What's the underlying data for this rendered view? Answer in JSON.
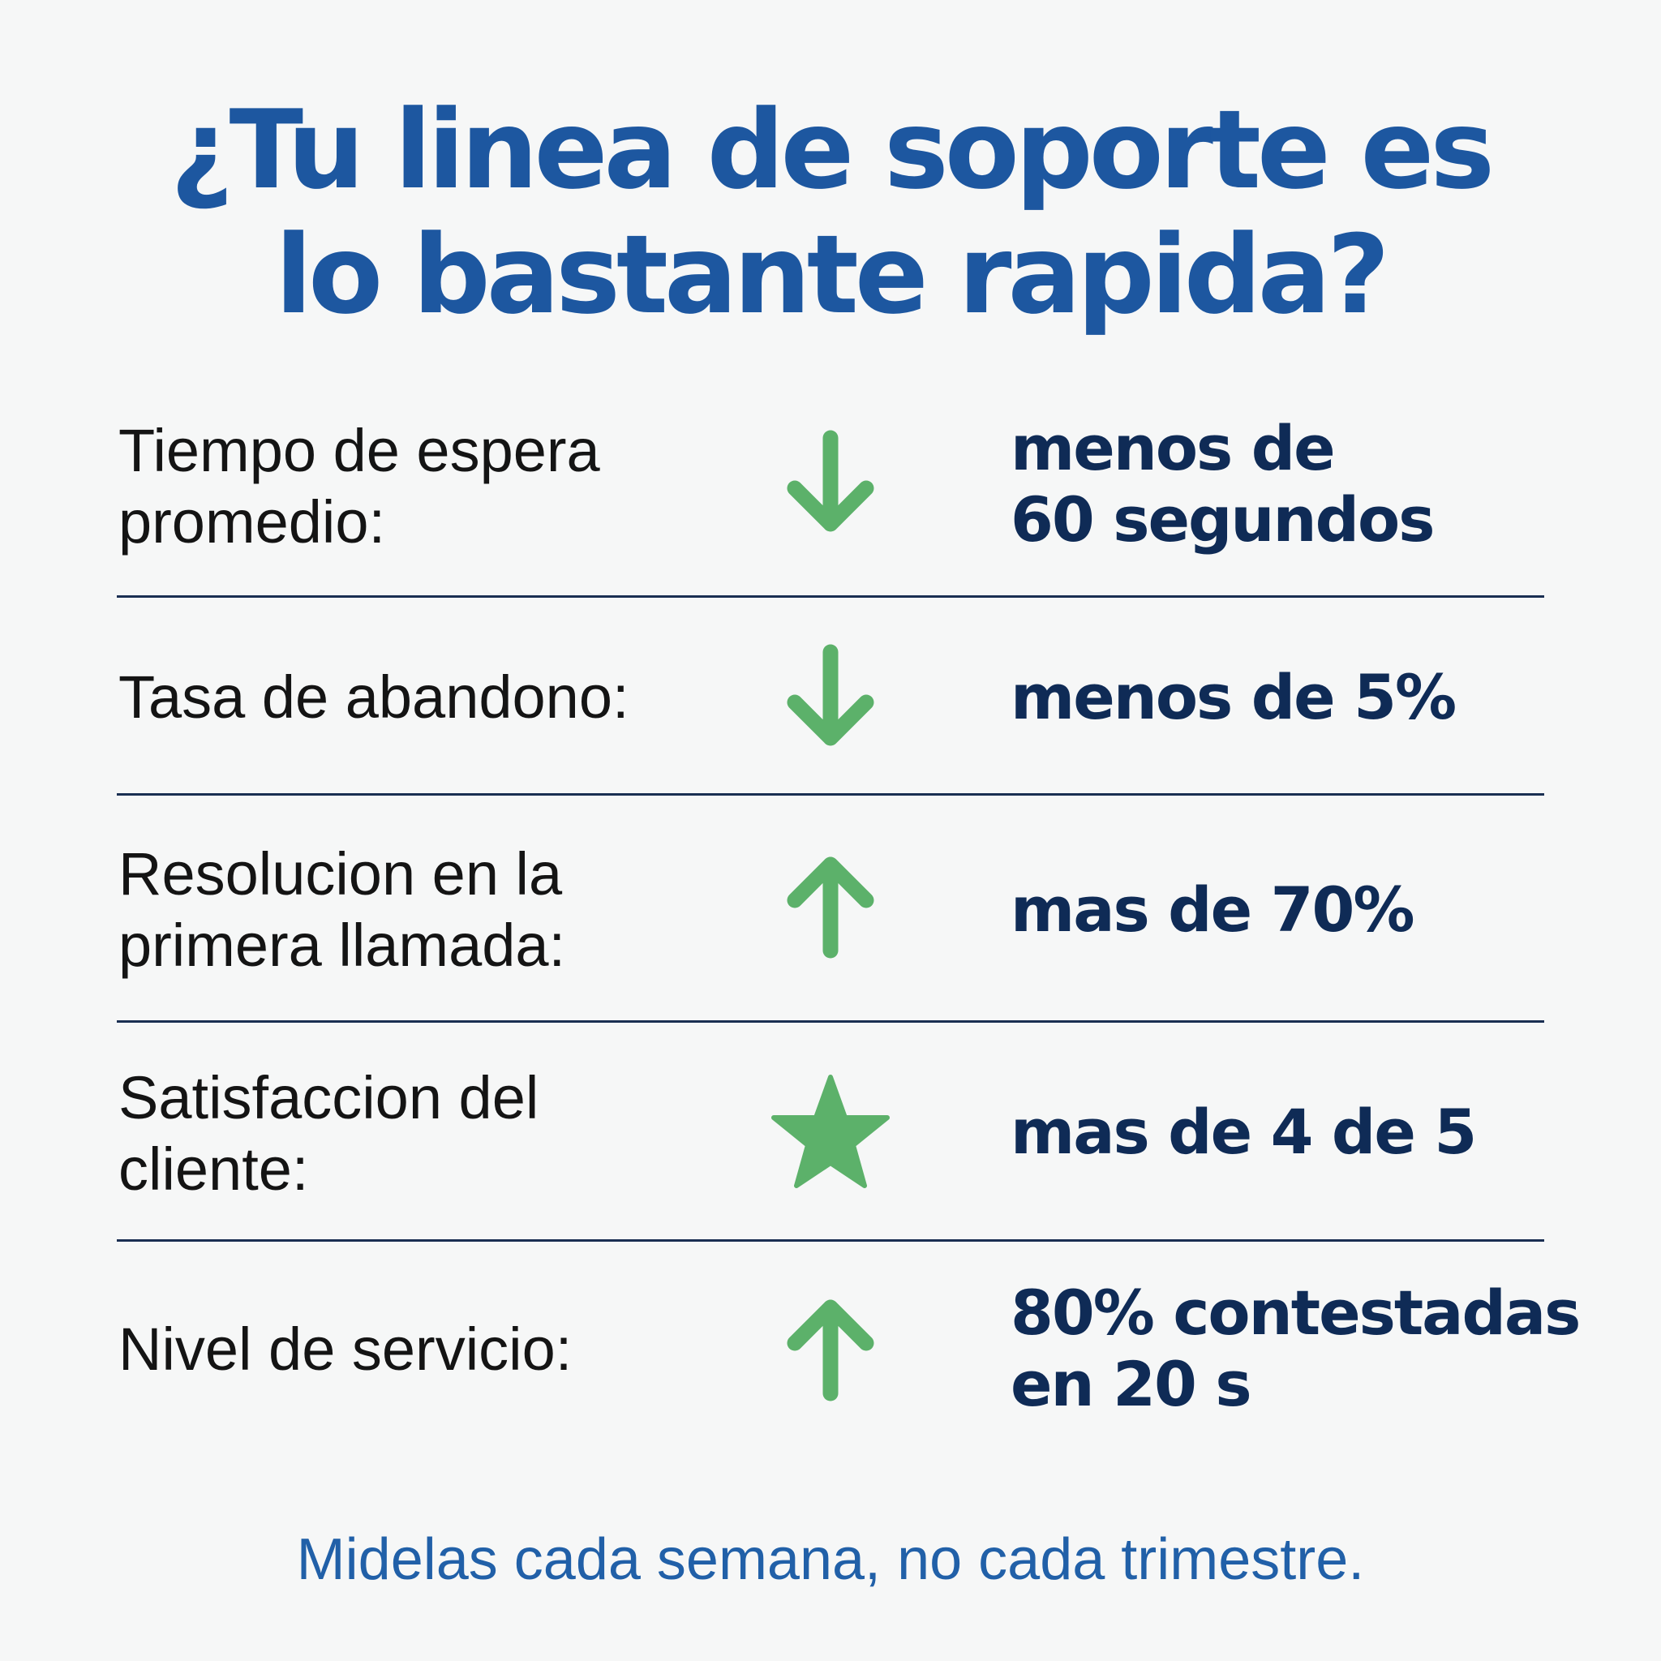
{
  "title": {
    "line1": "¿Tu linea de soporte es",
    "line2": "lo bastante rapida?"
  },
  "metrics": [
    {
      "label_line1": "Tiempo de espera",
      "label_line2": "promedio:",
      "icon": "arrow-down-icon",
      "value_line1": "menos de",
      "value_line2": "60 segundos"
    },
    {
      "label_line1": "Tasa de abandono:",
      "icon": "arrow-down-icon",
      "value_line1": "menos de 5%"
    },
    {
      "label_line1": "Resolucion en la",
      "label_line2": "primera llamada:",
      "icon": "arrow-up-icon",
      "value_line1": "mas de 70%"
    },
    {
      "label_line1": "Satisfaccion del",
      "label_line2": "cliente:",
      "icon": "star-icon",
      "value_line1": "mas de 4 de 5"
    },
    {
      "label_line1": "Nivel de servicio:",
      "icon": "arrow-up-icon",
      "value_line1": "80% contestadas",
      "value_line2": "en 20 s"
    }
  ],
  "footer": "Midelas cada semana, no cada trimestre.",
  "colors": {
    "background": "#f6f7f7",
    "title": "#1d57a0",
    "label": "#141414",
    "value": "#0f2b56",
    "icon_green": "#5cb16a",
    "divider": "#1a2f52",
    "footer": "#2160a8"
  }
}
